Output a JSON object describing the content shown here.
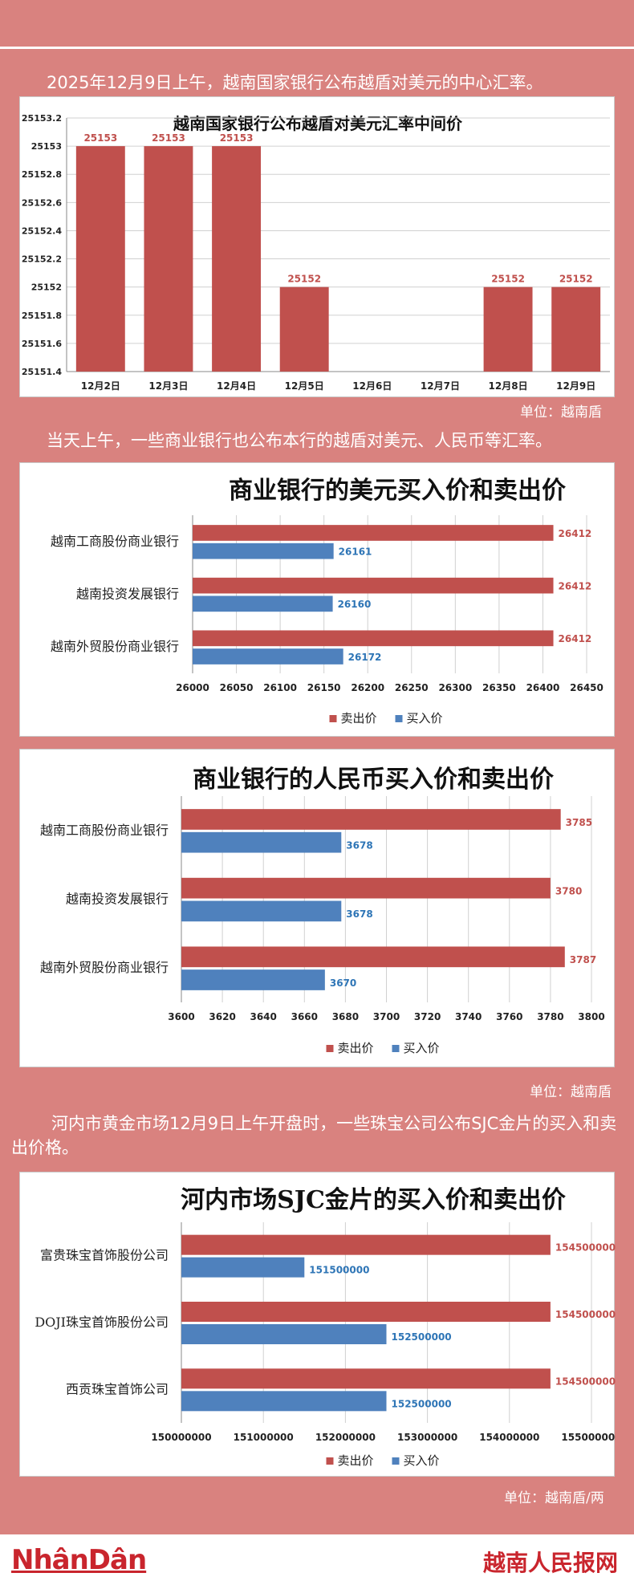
{
  "captions": {
    "c1": "2025年12月9日上午，越南国家银行公布越盾对美元的中心汇率。",
    "c2": "当天上午，一些商业银行也公布本行的越盾对美元、人民币等汇率。",
    "c3": "河内市黄金市场12月9日上午开盘时，一些珠宝公司公布SJC金片的买入和卖出价格。"
  },
  "units": {
    "u1": "单位：越南盾",
    "u2": "单位：越南盾",
    "u3": "单位：越南盾/两"
  },
  "footer": {
    "left_logo": "NhânDân",
    "right_logo": "越南人民报网"
  },
  "colors": {
    "sell": "#c0504d",
    "buy": "#4f81bd",
    "sell_label": "#c0504d",
    "buy_label": "#2e75b6"
  },
  "chart_data": [
    {
      "type": "bar",
      "title": "越南国家银行公布越盾对美元汇率中间价",
      "categories": [
        "12月2日",
        "12月3日",
        "12月4日",
        "12月5日",
        "12月6日",
        "12月7日",
        "12月8日",
        "12月9日"
      ],
      "values": [
        25153,
        25153,
        25153,
        25152,
        null,
        null,
        25152,
        25152
      ],
      "ylim": [
        25151.4,
        25153.2
      ],
      "yticks": [
        "25153.2",
        "25153",
        "25152.8",
        "25152.6",
        "25152.4",
        "25152.2",
        "25152",
        "25151.8",
        "25151.6",
        "25151.4"
      ],
      "grid": true
    },
    {
      "type": "bar",
      "orientation": "horizontal",
      "title": "商业银行的美元买入价和卖出价",
      "categories": [
        "越南工商股份商业银行",
        "越南投资发展银行",
        "越南外贸股份商业银行"
      ],
      "series": [
        {
          "name": "卖出价",
          "values": [
            26412,
            26412,
            26412
          ]
        },
        {
          "name": "买入价",
          "values": [
            26161,
            26160,
            26172
          ]
        }
      ],
      "xlim": [
        26000,
        26450
      ],
      "xticks": [
        "26000",
        "26050",
        "26100",
        "26150",
        "26200",
        "26250",
        "26300",
        "26350",
        "26400",
        "26450"
      ],
      "legend": "bottom"
    },
    {
      "type": "bar",
      "orientation": "horizontal",
      "title": "商业银行的人民币买入价和卖出价",
      "categories": [
        "越南工商股份商业银行",
        "越南投资发展银行",
        "越南外贸股份商业银行"
      ],
      "series": [
        {
          "name": "卖出价",
          "values": [
            3785,
            3780,
            3787
          ]
        },
        {
          "name": "买入价",
          "values": [
            3678,
            3678,
            3670
          ]
        }
      ],
      "xlim": [
        3600,
        3800
      ],
      "xticks": [
        "3600",
        "3620",
        "3640",
        "3660",
        "3680",
        "3700",
        "3720",
        "3740",
        "3760",
        "3780",
        "3800"
      ],
      "legend": "bottom"
    },
    {
      "type": "bar",
      "orientation": "horizontal",
      "title": "河内市场SJC金片的买入价和卖出价",
      "categories": [
        "富贵珠宝首饰股份公司",
        "DOJI珠宝首饰股份公司",
        "西贡珠宝首饰公司"
      ],
      "series": [
        {
          "name": "卖出价",
          "values": [
            154500000,
            154500000,
            154500000
          ]
        },
        {
          "name": "买入价",
          "values": [
            151500000,
            152500000,
            152500000
          ]
        }
      ],
      "xlim": [
        150000000,
        155000000
      ],
      "xticks": [
        "150000000",
        "151000000",
        "152000000",
        "153000000",
        "154000000",
        "155000000"
      ],
      "legend": "bottom"
    }
  ]
}
